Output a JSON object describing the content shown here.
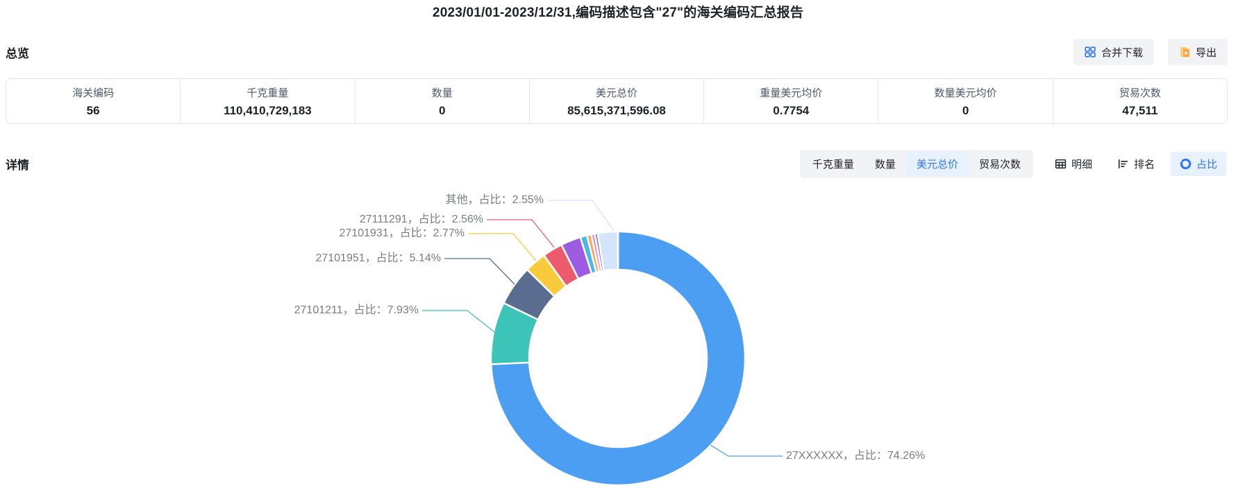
{
  "title": "2023/01/01-2023/12/31,编码描述包含\"27\"的海关编码汇总报告",
  "overview": {
    "heading": "总览",
    "buttons": {
      "merge_download": "合并下载",
      "export": "导出"
    },
    "stats": [
      {
        "key": "hs-code",
        "label": "海关编码",
        "value": "56"
      },
      {
        "key": "kg-weight",
        "label": "千克重量",
        "value": "110,410,729,183"
      },
      {
        "key": "quantity",
        "label": "数量",
        "value": "0"
      },
      {
        "key": "usd-total",
        "label": "美元总价",
        "value": "85,615,371,596.08"
      },
      {
        "key": "usd-per-kg",
        "label": "重量美元均价",
        "value": "0.7754"
      },
      {
        "key": "usd-per-qty",
        "label": "数量美元均价",
        "value": "0"
      },
      {
        "key": "trade-count",
        "label": "贸易次数",
        "value": "47,511"
      }
    ]
  },
  "detail": {
    "heading": "详情",
    "metric_tabs": [
      {
        "key": "kg-weight",
        "label": "千克重量",
        "active": false
      },
      {
        "key": "quantity",
        "label": "数量",
        "active": false
      },
      {
        "key": "usd-total",
        "label": "美元总价",
        "active": true
      },
      {
        "key": "trade-count",
        "label": "贸易次数",
        "active": false
      }
    ],
    "view_tabs": [
      {
        "key": "detail",
        "label": "明细",
        "icon": "table-icon",
        "active": false
      },
      {
        "key": "ranking",
        "label": "排名",
        "icon": "ranking-icon",
        "active": false
      },
      {
        "key": "ratio",
        "label": "占比",
        "icon": "ratio-icon",
        "active": true
      }
    ]
  },
  "chart_data": {
    "type": "pie",
    "donut": true,
    "unit": "percent",
    "legend_position": "none",
    "title": "",
    "segments": [
      {
        "name": "27XXXXXX",
        "value": 74.26,
        "color": "#4c9ef2",
        "label": "27XXXXXX，占比：74.26%"
      },
      {
        "name": "27101211",
        "value": 7.93,
        "color": "#3bc4b7",
        "label": "27101211，占比：7.93%"
      },
      {
        "name": "27101951",
        "value": 5.14,
        "color": "#5a6c8f",
        "label": "27101951，占比：5.14%"
      },
      {
        "name": "27101931",
        "value": 2.77,
        "color": "#f8cb3d",
        "label": "27101931，占比：2.77%"
      },
      {
        "name": "27111291",
        "value": 2.56,
        "color": "#ec5a6e",
        "label": "27111291，占比：2.56%"
      },
      {
        "name": "unlabeled-1",
        "value": 2.55,
        "color": "#9c5be0",
        "label": null,
        "estimated": true
      },
      {
        "name": "unlabeled-2",
        "value": 0.85,
        "color": "#45b9ea",
        "label": null,
        "estimated": true
      },
      {
        "name": "unlabeled-3",
        "value": 0.55,
        "color": "#f5a75f",
        "label": null,
        "estimated": true
      },
      {
        "name": "unlabeled-4",
        "value": 0.45,
        "color": "#ee8fb8",
        "label": null,
        "estimated": true
      },
      {
        "name": "unlabeled-5",
        "value": 0.39,
        "color": "#8d7ce8",
        "label": null,
        "estimated": true
      },
      {
        "name": "其他",
        "value": 2.55,
        "color": "#d4e5f9",
        "label": "其他，占比：2.55%"
      }
    ]
  },
  "colors": {
    "accent_blue": "#3377f6",
    "active_tab_bg": "#e8f1fe",
    "tab_group_bg": "#f2f3f5",
    "border": "#e5e6eb",
    "label_gray": "#777c85",
    "export_icon_orange": "#ffa53d",
    "export_icon_light": "#ffc977"
  }
}
